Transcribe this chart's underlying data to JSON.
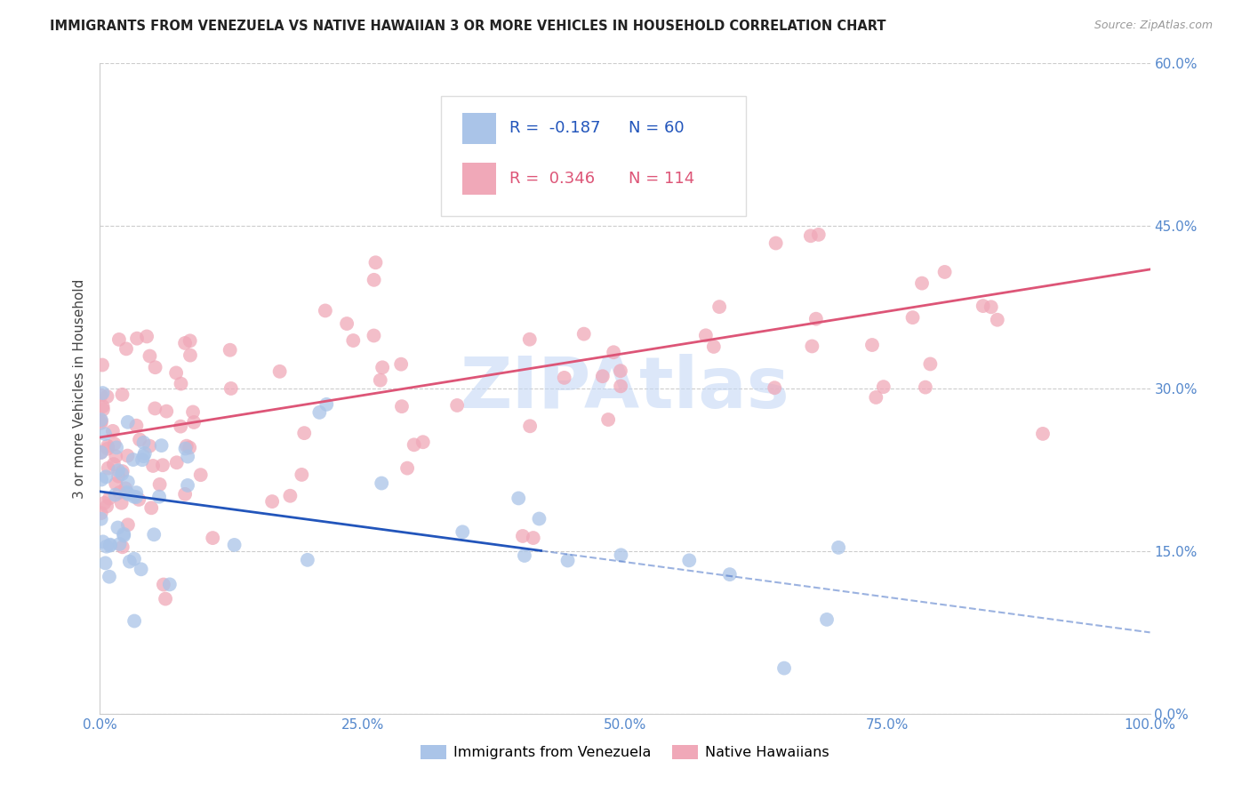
{
  "title": "IMMIGRANTS FROM VENEZUELA VS NATIVE HAWAIIAN 3 OR MORE VEHICLES IN HOUSEHOLD CORRELATION CHART",
  "source": "Source: ZipAtlas.com",
  "ylabel": "3 or more Vehicles in Household",
  "right_ytick_labels": [
    "0.0%",
    "15.0%",
    "30.0%",
    "45.0%",
    "60.0%"
  ],
  "right_ytick_values": [
    0.0,
    15.0,
    30.0,
    45.0,
    60.0
  ],
  "xlim": [
    0.0,
    100.0
  ],
  "ylim": [
    0.0,
    60.0
  ],
  "legend_r1": "-0.187",
  "legend_n1": "60",
  "legend_r2": "0.346",
  "legend_n2": "114",
  "legend_label1": "Immigrants from Venezuela",
  "legend_label2": "Native Hawaiians",
  "blue_color": "#aac4e8",
  "pink_color": "#f0a8b8",
  "blue_line_color": "#2255bb",
  "pink_line_color": "#dd5577",
  "watermark_color": "#c5d8f5",
  "grid_color": "#cccccc",
  "tick_color": "#5588cc",
  "title_color": "#222222",
  "source_color": "#999999",
  "ylabel_color": "#444444",
  "blue_intercept": 20.5,
  "blue_slope": -0.13,
  "pink_intercept": 25.5,
  "pink_slope": 0.155,
  "blue_x_end_solid": 42.0,
  "xlabel_ticks": [
    0.0,
    25.0,
    50.0,
    75.0,
    100.0
  ],
  "xlabel_tick_labels": [
    "0.0%",
    "25.0%",
    "50.0%",
    "75.0%",
    "100.0%"
  ]
}
